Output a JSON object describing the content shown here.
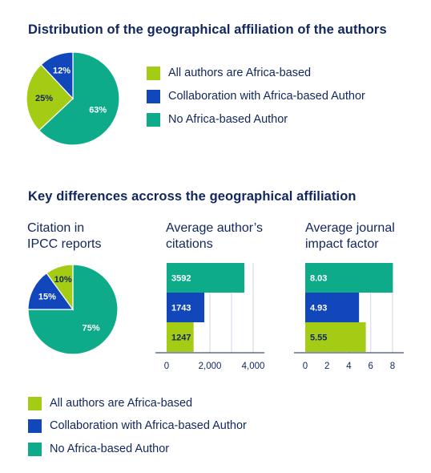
{
  "colors": {
    "navy": "#10265e",
    "green_light": "#a4cc14",
    "blue": "#1147ba",
    "teal": "#0eab8a"
  },
  "section1": {
    "title": "Distribution of the geographical affiliation of the authors",
    "legend": [
      {
        "label": "All authors are Africa-based",
        "color": "#a4cc14"
      },
      {
        "label": "Collaboration with Africa-based Author",
        "color": "#1147ba"
      },
      {
        "label": "No Africa-based Author",
        "color": "#0eab8a"
      }
    ]
  },
  "section2": {
    "title": "Key differences accross the geographical affiliation",
    "pie_title_line1": "Citation in",
    "pie_title_line2": "IPCC reports",
    "bar1_title_line1": "Average author’s",
    "bar1_title_line2": "citations",
    "bar2_title_line1": "Average journal",
    "bar2_title_line2": "impact factor",
    "legend": [
      {
        "label": "All authors are Africa-based",
        "color": "#a4cc14"
      },
      {
        "label": "Collaboration with Africa-based Author",
        "color": "#1147ba"
      },
      {
        "label": "No Africa-based Author",
        "color": "#0eab8a"
      }
    ]
  },
  "chart_data": [
    {
      "type": "pie",
      "title": "",
      "slices": [
        {
          "label": "No Africa-based Author",
          "value": 63,
          "text": "63%",
          "color": "#0eab8a"
        },
        {
          "label": "All authors are Africa-based",
          "value": 25,
          "text": "25%",
          "color": "#a4cc14"
        },
        {
          "label": "Collaboration with Africa-based Author",
          "value": 12,
          "text": "12%",
          "color": "#1147ba"
        }
      ]
    },
    {
      "type": "pie",
      "title": "Citation in IPCC reports",
      "slices": [
        {
          "label": "No Africa-based Author",
          "value": 75,
          "text": "75%",
          "color": "#0eab8a"
        },
        {
          "label": "Collaboration with Africa-based Author",
          "value": 15,
          "text": "15%",
          "color": "#1147ba"
        },
        {
          "label": "All authors are Africa-based",
          "value": 10,
          "text": "10%",
          "color": "#a4cc14"
        }
      ]
    },
    {
      "type": "bar",
      "orientation": "horizontal",
      "title": "Average author’s citations",
      "categories": [
        "No Africa-based Author",
        "Collaboration with Africa-based Author",
        "All authors are Africa-based"
      ],
      "values": [
        3592,
        1743,
        1247
      ],
      "value_labels": [
        "3592",
        "1743",
        "1247"
      ],
      "colors": [
        "#0eab8a",
        "#1147ba",
        "#a4cc14"
      ],
      "xlim": [
        0,
        4000
      ],
      "ticks": [
        0,
        2000,
        4000
      ],
      "tick_labels": [
        "0",
        "2,000",
        "4,000"
      ],
      "gridlines": [
        1000,
        2000,
        3000,
        4000
      ]
    },
    {
      "type": "bar",
      "orientation": "horizontal",
      "title": "Average journal impact factor",
      "categories": [
        "No Africa-based Author",
        "Collaboration with Africa-based Author",
        "All authors are Africa-based"
      ],
      "values": [
        8.03,
        4.93,
        5.55
      ],
      "value_labels": [
        "8.03",
        "4.93",
        "5.55"
      ],
      "colors": [
        "#0eab8a",
        "#1147ba",
        "#a4cc14"
      ],
      "xlim": [
        0,
        8
      ],
      "ticks": [
        0,
        2,
        4,
        6,
        8
      ],
      "tick_labels": [
        "0",
        "2",
        "4",
        "6",
        "8"
      ],
      "gridlines": [
        2,
        4,
        6,
        8
      ]
    }
  ]
}
